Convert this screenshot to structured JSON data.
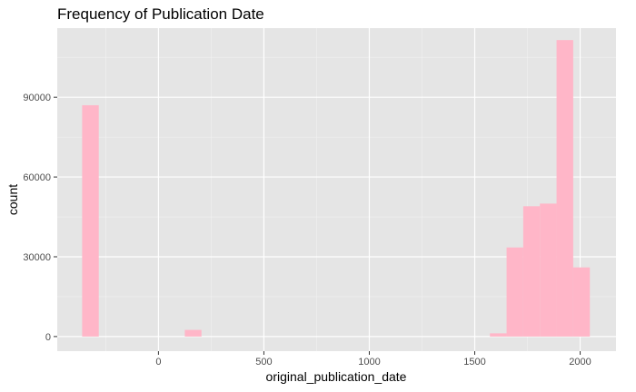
{
  "chart_data": {
    "type": "bar",
    "title": "Frequency of Publication Date",
    "xlabel": "original_publication_date",
    "ylabel": "count",
    "xlim": [
      -480,
      2170
    ],
    "ylim": [
      -5500,
      116000
    ],
    "bin_width": 79,
    "x_ticks": [
      0,
      500,
      1000,
      1500,
      2000
    ],
    "y_ticks": [
      0,
      30000,
      60000,
      90000
    ],
    "grid": true,
    "legend": "none",
    "bars": [
      {
        "x0": -362,
        "x1": -283,
        "count": 87000
      },
      {
        "x0": 125,
        "x1": 204,
        "count": 2500
      },
      {
        "x0": 1572,
        "x1": 1651,
        "count": 1200
      },
      {
        "x0": 1651,
        "x1": 1730,
        "count": 33500
      },
      {
        "x0": 1730,
        "x1": 1809,
        "count": 49000
      },
      {
        "x0": 1809,
        "x1": 1888,
        "count": 50000
      },
      {
        "x0": 1888,
        "x1": 1967,
        "count": 111500
      },
      {
        "x0": 1967,
        "x1": 2046,
        "count": 26000
      }
    ],
    "colors": {
      "bar": "#ffb6c8",
      "panel": "#e5e5e5",
      "grid_major": "#ffffff",
      "grid_minor": "#f2f2f2"
    }
  }
}
